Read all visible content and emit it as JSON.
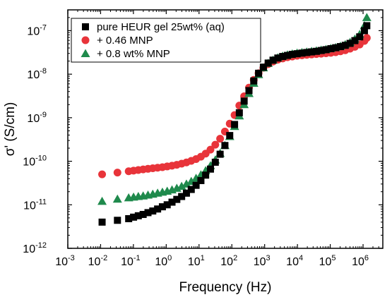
{
  "chart_data": {
    "type": "scatter",
    "title": "",
    "xlabel": "Frequency (Hz)",
    "ylabel": "σ' (S/cm)",
    "x_scale": "log",
    "y_scale": "log",
    "xlim": [
      0.001,
      4000000
    ],
    "ylim": [
      1e-12,
      3e-07
    ],
    "x_ticks": [
      {
        "base": "10",
        "exp": "-3",
        "value": 0.001
      },
      {
        "base": "10",
        "exp": "-2",
        "value": 0.01
      },
      {
        "base": "10",
        "exp": "-1",
        "value": 0.1
      },
      {
        "base": "10",
        "exp": "0",
        "value": 1
      },
      {
        "base": "10",
        "exp": "1",
        "value": 10
      },
      {
        "base": "10",
        "exp": "2",
        "value": 100
      },
      {
        "base": "10",
        "exp": "3",
        "value": 1000
      },
      {
        "base": "10",
        "exp": "4",
        "value": 10000
      },
      {
        "base": "10",
        "exp": "5",
        "value": 100000
      },
      {
        "base": "10",
        "exp": "6",
        "value": 1000000
      }
    ],
    "y_ticks": [
      {
        "base": "10",
        "exp": "-12",
        "value": 1e-12
      },
      {
        "base": "10",
        "exp": "-11",
        "value": 1e-11
      },
      {
        "base": "10",
        "exp": "-10",
        "value": 1e-10
      },
      {
        "base": "10",
        "exp": "-9",
        "value": 1e-09
      },
      {
        "base": "10",
        "exp": "-8",
        "value": 1e-08
      },
      {
        "base": "10",
        "exp": "-7",
        "value": 1e-07
      }
    ],
    "grid": false,
    "legend_position": "top-left",
    "series": [
      {
        "name": "pure HEUR gel 25wt% (aq)",
        "marker": "square",
        "color": "#000000",
        "x": [
          0.0111,
          0.0326,
          0.0717,
          0.101,
          0.141,
          0.198,
          0.278,
          0.389,
          0.546,
          0.765,
          1.07,
          1.5,
          2.1,
          2.95,
          4.13,
          5.79,
          8.12,
          11.4,
          15.9,
          22.3,
          31.3,
          43.9,
          61.5,
          86.2,
          121,
          169,
          237,
          333,
          466,
          653,
          916,
          1280,
          1800,
          2520,
          3540,
          4960,
          6950,
          9750,
          13700,
          19200,
          26900,
          37700,
          52800,
          74000,
          104000,
          146000,
          204000,
          286000,
          401000,
          562000,
          788000,
          1100000,
          1300000
        ],
        "y": [
          4e-12,
          4.4e-12,
          4.8e-12,
          5.2e-12,
          5.6e-12,
          6e-12,
          6.6e-12,
          7.2e-12,
          8e-12,
          9e-12,
          1e-11,
          1.15e-11,
          1.33e-11,
          1.55e-11,
          1.85e-11,
          2.25e-11,
          2.8e-11,
          3.6e-11,
          4.8e-11,
          6.6e-11,
          9.5e-11,
          1.45e-10,
          2.3e-10,
          3.9e-10,
          7e-10,
          1.3e-09,
          2.4e-09,
          4.2e-09,
          7e-09,
          1.05e-08,
          1.45e-08,
          1.8e-08,
          2.1e-08,
          2.35e-08,
          2.55e-08,
          2.7e-08,
          2.85e-08,
          2.95e-08,
          3.05e-08,
          3.15e-08,
          3.25e-08,
          3.35e-08,
          3.5e-08,
          3.65e-08,
          3.85e-08,
          4.05e-08,
          4.3e-08,
          4.6e-08,
          5.1e-08,
          5.9e-08,
          7.2e-08,
          1e-07,
          1.3e-07
        ]
      },
      {
        "name": "+ 0.46 MNP",
        "marker": "circle",
        "color": "#e8343a",
        "x": [
          0.0111,
          0.0326,
          0.0717,
          0.101,
          0.141,
          0.198,
          0.278,
          0.389,
          0.546,
          0.765,
          1.07,
          1.5,
          2.1,
          2.95,
          4.13,
          5.79,
          8.12,
          11.4,
          15.9,
          22.3,
          31.3,
          43.9,
          61.5,
          86.2,
          121,
          169,
          237,
          333,
          466,
          653,
          916,
          1280,
          1800,
          2520,
          3540,
          4960,
          6950,
          9750,
          13700,
          19200,
          26900,
          37700,
          52800,
          74000,
          104000,
          146000,
          204000,
          286000,
          401000,
          562000,
          788000,
          1100000,
          1300000
        ],
        "y": [
          5e-11,
          5.5e-11,
          5.9e-11,
          6.1e-11,
          6.3e-11,
          6.5e-11,
          6.7e-11,
          6.9e-11,
          7.1e-11,
          7.3e-11,
          7.6e-11,
          7.9e-11,
          8.3e-11,
          8.8e-11,
          9.4e-11,
          1.02e-10,
          1.12e-10,
          1.27e-10,
          1.5e-10,
          1.85e-10,
          2.4e-10,
          3.3e-10,
          4.8e-10,
          7.3e-10,
          1.15e-09,
          1.9e-09,
          3.1e-09,
          4.9e-09,
          7.4e-09,
          1.05e-08,
          1.4e-08,
          1.7e-08,
          1.95e-08,
          2.15e-08,
          2.3e-08,
          2.45e-08,
          2.55e-08,
          2.65e-08,
          2.72e-08,
          2.78e-08,
          2.84e-08,
          2.9e-08,
          2.96e-08,
          3.02e-08,
          3.1e-08,
          3.2e-08,
          3.35e-08,
          3.55e-08,
          3.85e-08,
          4.25e-08,
          4.8e-08,
          5.8e-08,
          6.8e-08
        ]
      },
      {
        "name": "+ 0.8 wt% MNP",
        "marker": "triangle",
        "color": "#1f8a4c",
        "x": [
          0.0111,
          0.0326,
          0.0717,
          0.101,
          0.141,
          0.198,
          0.278,
          0.389,
          0.546,
          0.765,
          1.07,
          1.5,
          2.1,
          2.95,
          4.13,
          5.79,
          8.12,
          11.4,
          15.9,
          22.3,
          31.3,
          43.9,
          61.5,
          86.2,
          121,
          169,
          237,
          333,
          466,
          653,
          916,
          1280,
          1800,
          2520,
          3540,
          4960,
          6950,
          9750,
          13700,
          19200,
          26900,
          37700,
          52800,
          74000,
          104000,
          146000,
          204000,
          286000,
          401000,
          562000,
          788000,
          1100000,
          1300000
        ],
        "y": [
          1.2e-11,
          1.35e-11,
          1.45e-11,
          1.5e-11,
          1.55e-11,
          1.6e-11,
          1.67e-11,
          1.75e-11,
          1.85e-11,
          1.95e-11,
          2.05e-11,
          2.2e-11,
          2.4e-11,
          2.65e-11,
          3e-11,
          3.45e-11,
          4.05e-11,
          4.9e-11,
          6.1e-11,
          7.9e-11,
          1.07e-10,
          1.52e-10,
          2.3e-10,
          3.7e-10,
          6.3e-10,
          1.1e-09,
          2e-09,
          3.6e-09,
          6.2e-09,
          9.8e-09,
          1.4e-08,
          1.78e-08,
          2.1e-08,
          2.38e-08,
          2.6e-08,
          2.78e-08,
          2.93e-08,
          3.05e-08,
          3.15e-08,
          3.25e-08,
          3.35e-08,
          3.45e-08,
          3.57e-08,
          3.72e-08,
          3.9e-08,
          4.1e-08,
          4.4e-08,
          4.8e-08,
          5.4e-08,
          6.4e-08,
          8.2e-08,
          1.3e-07,
          2e-07
        ]
      }
    ]
  }
}
